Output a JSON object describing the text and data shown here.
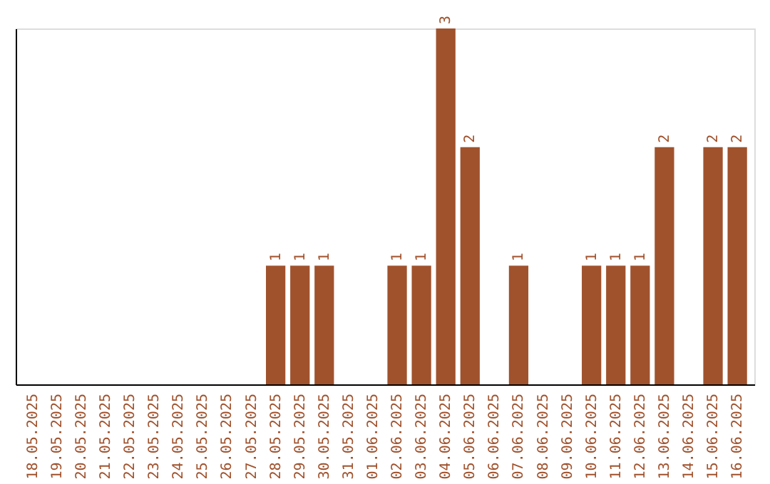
{
  "chart_data": {
    "type": "bar",
    "categories": [
      "18.05.2025",
      "19.05.2025",
      "20.05.2025",
      "21.05.2025",
      "22.05.2025",
      "23.05.2025",
      "24.05.2025",
      "25.05.2025",
      "26.05.2025",
      "27.05.2025",
      "28.05.2025",
      "29.05.2025",
      "30.05.2025",
      "31.05.2025",
      "01.06.2025",
      "02.06.2025",
      "03.06.2025",
      "04.06.2025",
      "05.06.2025",
      "06.06.2025",
      "07.06.2025",
      "08.06.2025",
      "09.06.2025",
      "10.06.2025",
      "11.06.2025",
      "12.06.2025",
      "13.06.2025",
      "14.06.2025",
      "15.06.2025",
      "16.06.2025"
    ],
    "values": [
      0,
      0,
      0,
      0,
      0,
      0,
      0,
      0,
      0,
      0,
      1,
      1,
      1,
      0,
      0,
      1,
      1,
      3,
      2,
      0,
      1,
      0,
      0,
      1,
      1,
      1,
      2,
      0,
      2,
      2
    ],
    "value_labels": [
      null,
      null,
      null,
      null,
      null,
      null,
      null,
      null,
      null,
      null,
      "1",
      "1",
      "1",
      null,
      null,
      "1",
      "1",
      "3",
      "2",
      null,
      "1",
      null,
      null,
      "1",
      "1",
      "1",
      "2",
      null,
      "2",
      "2"
    ],
    "color": "#a0522d",
    "grid": false
  }
}
